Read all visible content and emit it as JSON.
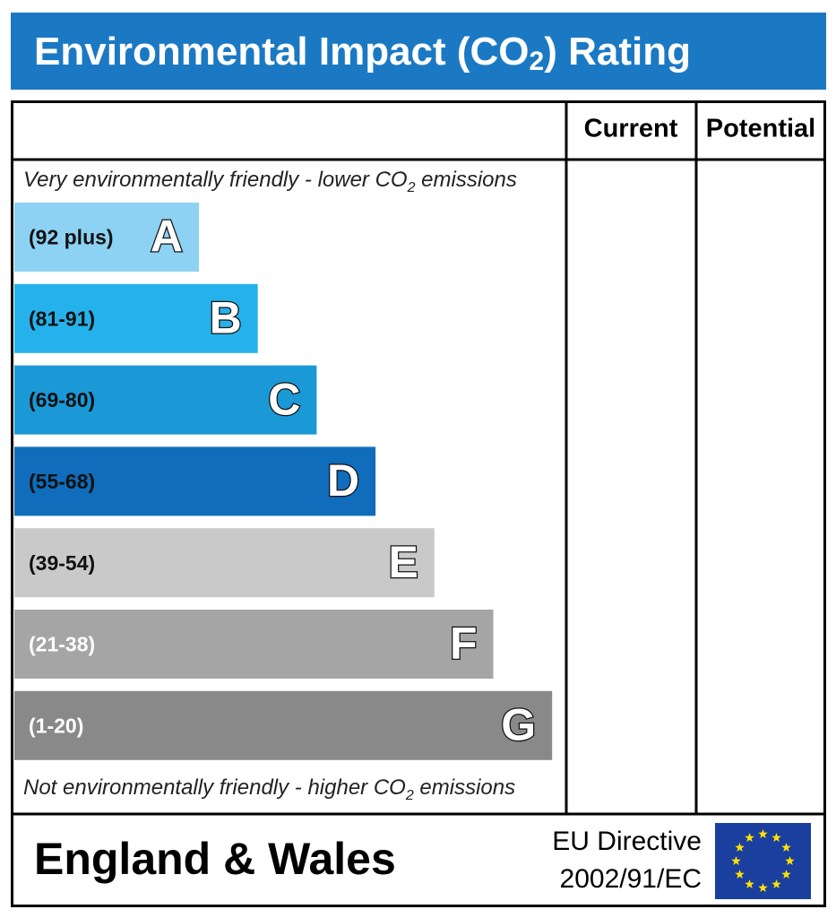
{
  "title": [
    "Environmental Impact (CO",
    "2",
    ") Rating"
  ],
  "columns": [
    "Current",
    "Potential"
  ],
  "top_note": [
    "Very environmentally friendly - lower CO",
    "2",
    " emissions"
  ],
  "bands": [
    {
      "range": "(92 plus)",
      "letter": "A",
      "color": "#8dd2f2",
      "text_color": "#111111"
    },
    {
      "range": "(81-91)",
      "letter": "B",
      "color": "#25b2ec",
      "text_color": "#111111"
    },
    {
      "range": "(69-80)",
      "letter": "C",
      "color": "#1b99d6",
      "text_color": "#111111"
    },
    {
      "range": "(55-68)",
      "letter": "D",
      "color": "#0f6dbb",
      "text_color": "#111111"
    },
    {
      "range": "(39-54)",
      "letter": "E",
      "color": "#c9c9c9",
      "text_color": "#111111"
    },
    {
      "range": "(21-38)",
      "letter": "F",
      "color": "#a5a5a5",
      "text_color": "#ffffff"
    },
    {
      "range": "(1-20)",
      "letter": "G",
      "color": "#898989",
      "text_color": "#ffffff"
    }
  ],
  "bottom_note": [
    "Not environmentally friendly - higher CO",
    "2",
    " emissions"
  ],
  "footer": {
    "region": "England & Wales",
    "directive": [
      "EU Directive",
      "2002/91/EC"
    ]
  }
}
